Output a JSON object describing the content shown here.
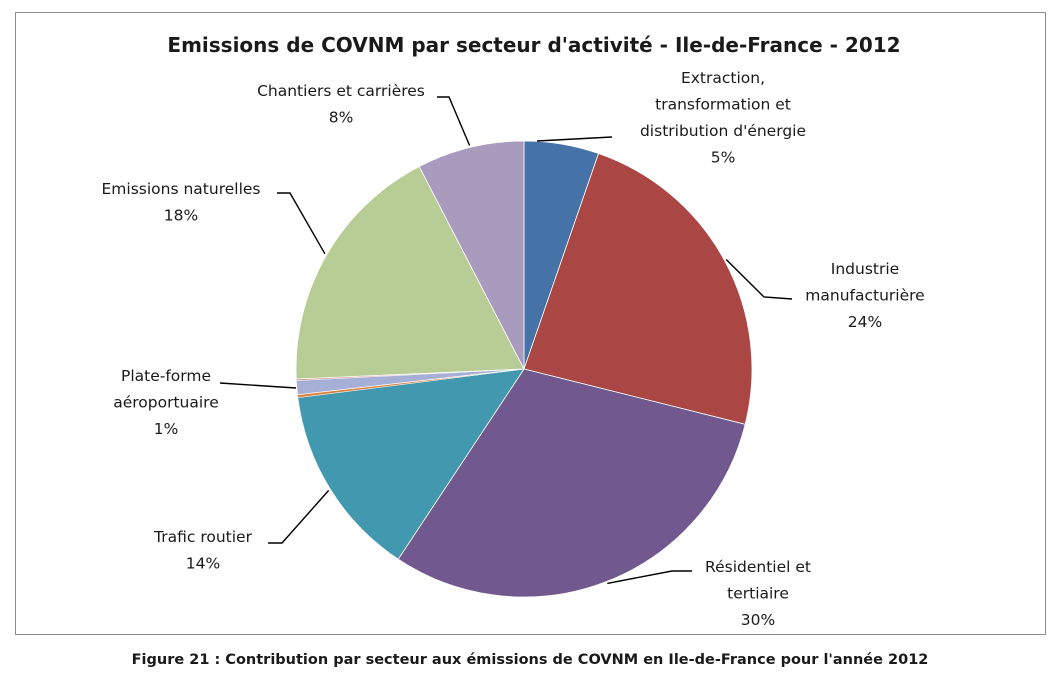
{
  "chart_data": {
    "type": "pie",
    "title": "Emissions de COVNM par secteur d'activité - Ile-de-France - 2012",
    "categories": [
      "Extraction, transformation et distribution d'énergie",
      "Industrie manufacturière",
      "Résidentiel et tertiaire",
      "Trafic routier",
      "Plate-forme aéroportuaire",
      "Emissions naturelles",
      "Chantiers et carrières"
    ],
    "values": [
      5.3,
      23.6,
      30.4,
      13.7,
      1.0,
      18.1,
      7.6
    ],
    "colors": [
      "#4572a7",
      "#aa4643",
      "#71588f",
      "#4198af",
      "#a6b0d6",
      "#b8cd96",
      "#a99bbd"
    ],
    "slivers": [
      {
        "after": "Trafic routier",
        "value": 0.2,
        "color": "#db843d"
      },
      {
        "after": "Plate-forme aéroportuaire",
        "value": 0.1,
        "color": "#d99694"
      }
    ],
    "labels": [
      {
        "lines": [
          "Extraction,",
          "transformation et",
          "distribution d'énergie"
        ],
        "pct": "5%"
      },
      {
        "lines": [
          "Industrie",
          "manufacturière"
        ],
        "pct": "24%"
      },
      {
        "lines": [
          "Résidentiel et",
          "tertiaire"
        ],
        "pct": "30%"
      },
      {
        "lines": [
          "Trafic routier"
        ],
        "pct": "14%"
      },
      {
        "lines": [
          "Plate-forme",
          "aéroportuaire"
        ],
        "pct": "1%"
      },
      {
        "lines": [
          "Emissions naturelles"
        ],
        "pct": "18%"
      },
      {
        "lines": [
          "Chantiers et carrières"
        ],
        "pct": "8%"
      }
    ],
    "start_angle": "12 o'clock",
    "direction": "clockwise",
    "legend": "none"
  },
  "caption": "Figure 21 : Contribution par secteur aux émissions de COVNM en Ile-de-France pour l'année 2012"
}
